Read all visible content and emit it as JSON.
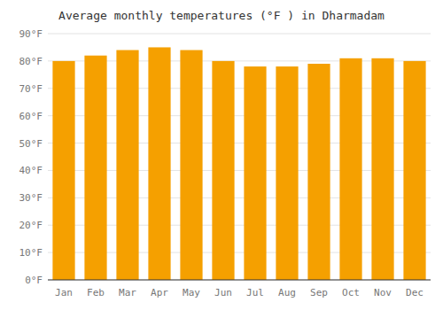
{
  "chart_data": {
    "type": "bar",
    "title": "Average monthly temperatures (°F ) in Dharmadam",
    "categories": [
      "Jan",
      "Feb",
      "Mar",
      "Apr",
      "May",
      "Jun",
      "Jul",
      "Aug",
      "Sep",
      "Oct",
      "Nov",
      "Dec"
    ],
    "values": [
      80,
      82,
      84,
      85,
      84,
      80,
      78,
      78,
      79,
      81,
      81,
      80
    ],
    "color": "#F5A000",
    "ylim": [
      0,
      90
    ],
    "yticks": [
      {
        "value": 0,
        "label": "0°F"
      },
      {
        "value": 10,
        "label": "10°F"
      },
      {
        "value": 20,
        "label": "20°F"
      },
      {
        "value": 30,
        "label": "30°F"
      },
      {
        "value": 40,
        "label": "40°F"
      },
      {
        "value": 50,
        "label": "50°F"
      },
      {
        "value": 60,
        "label": "60°F"
      },
      {
        "value": 70,
        "label": "70°F"
      },
      {
        "value": 80,
        "label": "80°F"
      },
      {
        "value": 90,
        "label": "90°F"
      }
    ],
    "grid": true
  }
}
